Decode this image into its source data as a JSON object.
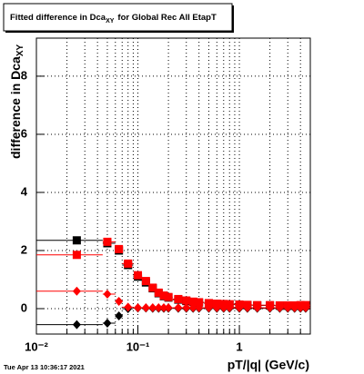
{
  "chart_data": {
    "type": "scatter",
    "title": [
      "Fitted difference in Dca",
      "XY",
      "for Global Rec All EtapT"
    ],
    "y_label": [
      "difference in Dca",
      "XY"
    ],
    "x_label": "pT/|q| (GeV/c)",
    "annotation": "Tue Apr 13 10:36:17 2021",
    "x_log": true,
    "grid": true,
    "xlim": [
      0.01,
      5.0
    ],
    "ylim": [
      -0.875,
      9.31
    ],
    "xticks": [
      {
        "value": 0.01,
        "label": "10⁻²"
      },
      {
        "value": 0.1,
        "label": "10⁻¹"
      },
      1
    ],
    "x_minor_ticks": [
      0.02,
      0.03,
      0.04,
      0.05,
      0.06,
      0.07,
      0.08,
      0.09,
      0.2,
      0.3,
      0.4,
      0.5,
      0.6,
      0.7,
      0.8,
      0.9,
      2,
      3,
      4
    ],
    "yticks": [
      0,
      2,
      4,
      6,
      8
    ],
    "bins": [
      0.01,
      0.045,
      0.06,
      0.07,
      0.09,
      0.11,
      0.13,
      0.15,
      0.17,
      0.19,
      0.22,
      0.28,
      0.32,
      0.38,
      0.45,
      0.55,
      0.65,
      0.75,
      0.9,
      1.1,
      1.35,
      1.75,
      2.25,
      2.75,
      3.25,
      3.75,
      4.25,
      5.0
    ],
    "x": [
      0.025,
      0.05,
      0.065,
      0.08,
      0.1,
      0.12,
      0.14,
      0.16,
      0.18,
      0.2,
      0.25,
      0.3,
      0.35,
      0.4,
      0.5,
      0.6,
      0.7,
      0.8,
      1.0,
      1.2,
      1.5,
      2,
      2.5,
      3,
      3.5,
      4,
      4.5
    ],
    "series": [
      {
        "marker": "square",
        "color": "#000000",
        "values": [
          2.35,
          2.25,
          2.0,
          1.5,
          1.1,
          0.9,
          0.7,
          0.53,
          0.43,
          0.38,
          0.31,
          0.26,
          0.23,
          0.21,
          0.18,
          0.16,
          0.15,
          0.14,
          0.13,
          0.12,
          0.11,
          0.11,
          0.1,
          0.1,
          0.1,
          0.11,
          0.11
        ]
      },
      {
        "marker": "square",
        "color": "#ff0000",
        "values": [
          1.85,
          2.3,
          2.05,
          1.55,
          1.15,
          0.95,
          0.72,
          0.55,
          0.45,
          0.4,
          0.33,
          0.28,
          0.24,
          0.22,
          0.19,
          0.17,
          0.16,
          0.15,
          0.14,
          0.13,
          0.12,
          0.12,
          0.11,
          0.11,
          0.11,
          0.12,
          0.12
        ]
      },
      {
        "marker": "diamond",
        "color": "#000000",
        "values": [
          -0.55,
          -0.5,
          -0.25,
          0.0,
          0.02,
          0.02,
          0.01,
          0.01,
          0.01,
          0.01,
          0.01,
          0.01,
          0.01,
          0.01,
          0.01,
          0.01,
          0.01,
          0.01,
          0.01,
          0.01,
          0.01,
          0.01,
          0.01,
          0.01,
          0.01,
          0.01,
          0.01
        ]
      },
      {
        "marker": "diamond",
        "color": "#ff0000",
        "values": [
          0.6,
          0.5,
          0.25,
          0.05,
          0.03,
          0.03,
          0.03,
          0.03,
          0.03,
          0.03,
          0.03,
          0.03,
          0.03,
          0.03,
          0.03,
          0.03,
          0.03,
          0.03,
          0.03,
          0.03,
          0.03,
          0.03,
          0.03,
          0.03,
          0.03,
          0.03,
          0.03
        ]
      }
    ]
  }
}
